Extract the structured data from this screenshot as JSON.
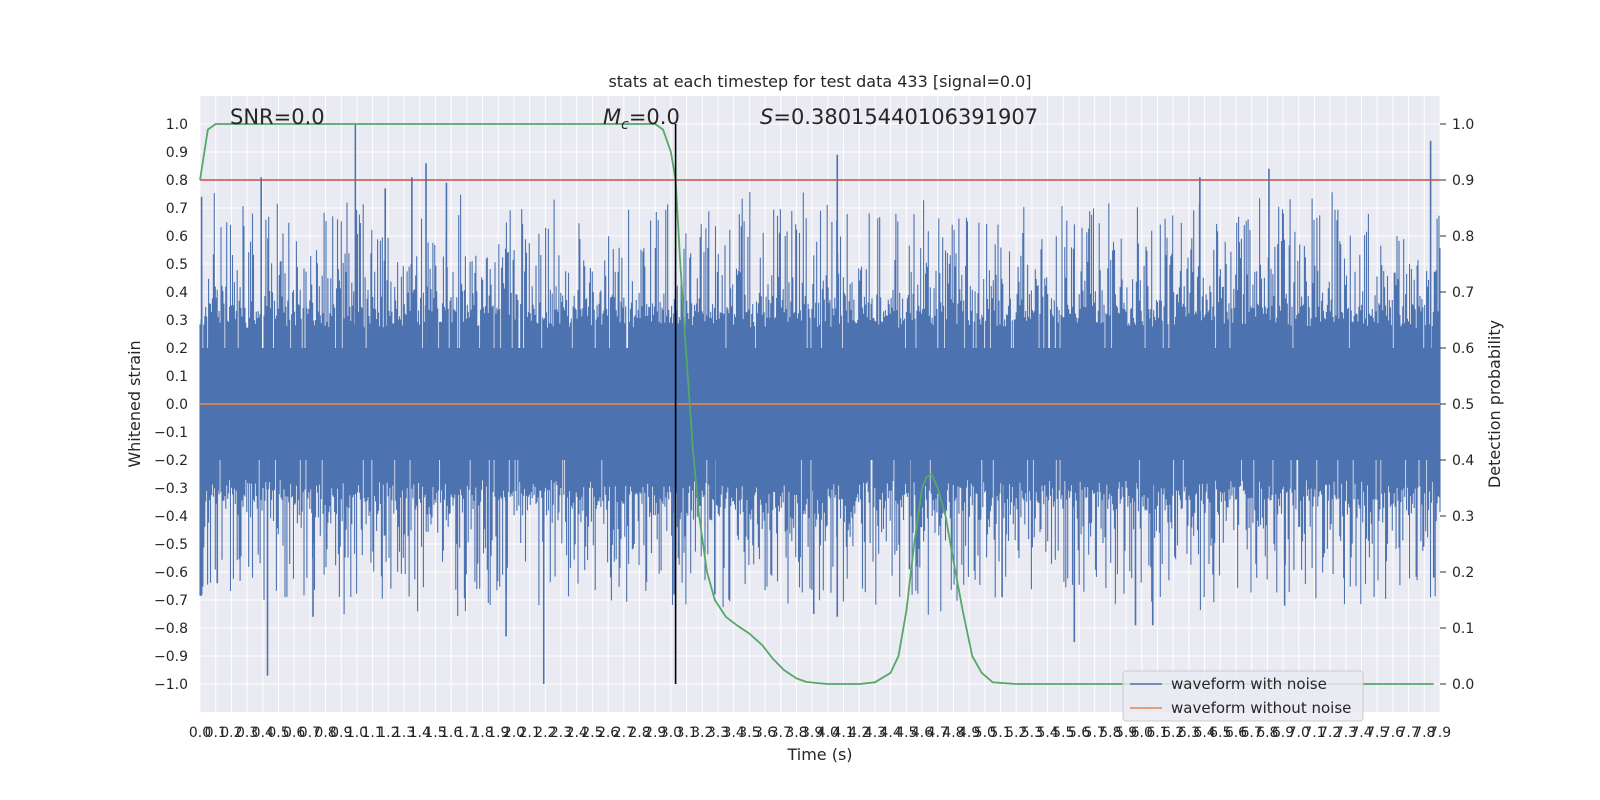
{
  "chart_data": {
    "type": "line",
    "title": "stats at each timestep for test data 433 [signal=0.0]",
    "xlabel": "Time (s)",
    "ylabel_left": "Whitened strain",
    "ylabel_right": "Detection probability",
    "xlim": [
      0.0,
      7.9
    ],
    "ylim_left": [
      -1.1,
      1.1
    ],
    "ylim_right": [
      -0.05,
      1.05
    ],
    "x_ticks": [
      "0.0",
      "0.1",
      "0.2",
      "0.3",
      "0.4",
      "0.5",
      "0.6",
      "0.7",
      "0.8",
      "0.9",
      "1.0",
      "1.1",
      "1.2",
      "1.3",
      "1.4",
      "1.5",
      "1.6",
      "1.7",
      "1.8",
      "1.9",
      "2.0",
      "2.1",
      "2.2",
      "2.3",
      "2.4",
      "2.5",
      "2.6",
      "2.7",
      "2.8",
      "2.9",
      "3.0",
      "3.1",
      "3.2",
      "3.3",
      "3.4",
      "3.5",
      "3.6",
      "3.7",
      "3.8",
      "3.9",
      "4.0",
      "4.1",
      "4.2",
      "4.3",
      "4.4",
      "4.5",
      "4.6",
      "4.7",
      "4.8",
      "4.9",
      "5.0",
      "5.1",
      "5.2",
      "5.3",
      "5.4",
      "5.5",
      "5.6",
      "5.7",
      "5.8",
      "5.9",
      "6.0",
      "6.1",
      "6.2",
      "6.3",
      "6.4",
      "6.5",
      "6.6",
      "6.7",
      "6.8",
      "6.9",
      "7.0",
      "7.1",
      "7.2",
      "7.3",
      "7.4",
      "7.5",
      "7.6",
      "7.7",
      "7.8",
      "7.9"
    ],
    "y_ticks_left": [
      "−1.0",
      "−0.9",
      "−0.8",
      "−0.7",
      "−0.6",
      "−0.5",
      "−0.4",
      "−0.3",
      "−0.2",
      "−0.1",
      "0.0",
      "0.1",
      "0.2",
      "0.3",
      "0.4",
      "0.5",
      "0.6",
      "0.7",
      "0.8",
      "0.9",
      "1.0"
    ],
    "y_ticks_right": [
      "0.0",
      "0.1",
      "0.2",
      "0.3",
      "0.4",
      "0.5",
      "0.6",
      "0.7",
      "0.8",
      "0.9",
      "1.0"
    ],
    "annotations": {
      "snr": "SNR=0.0",
      "mc_symbol": "M",
      "mc_sub": "c",
      "mc_value": "=0.0",
      "s_symbol": "S",
      "s_value": "=0.38015440106391907"
    },
    "threshold_right": 0.9,
    "marker_x": 3.03,
    "series": [
      {
        "name": "waveform with noise",
        "axis": "left",
        "color": "#4c72b0",
        "description": "dense noise, normalized to peak 1.0",
        "peaks": [
          {
            "x": 0.01,
            "y": 0.74
          },
          {
            "x": 0.01,
            "y": -0.64
          },
          {
            "x": 0.11,
            "y": -0.64
          },
          {
            "x": 0.39,
            "y": 0.81
          },
          {
            "x": 0.43,
            "y": -0.97
          },
          {
            "x": 0.72,
            "y": -0.76
          },
          {
            "x": 0.99,
            "y": 1.0
          },
          {
            "x": 1.18,
            "y": 0.77
          },
          {
            "x": 1.35,
            "y": 0.81
          },
          {
            "x": 1.44,
            "y": 0.86
          },
          {
            "x": 1.57,
            "y": 0.79
          },
          {
            "x": 1.95,
            "y": -0.83
          },
          {
            "x": 2.19,
            "y": -1.0
          },
          {
            "x": 3.02,
            "y": -0.68
          },
          {
            "x": 3.28,
            "y": -0.68
          },
          {
            "x": 3.91,
            "y": -0.75
          },
          {
            "x": 4.06,
            "y": 0.89
          },
          {
            "x": 4.06,
            "y": -0.76
          },
          {
            "x": 4.52,
            "y": -0.59
          },
          {
            "x": 5.11,
            "y": -0.69
          },
          {
            "x": 5.57,
            "y": -0.85
          },
          {
            "x": 5.96,
            "y": -0.79
          },
          {
            "x": 6.07,
            "y": -0.79
          },
          {
            "x": 6.37,
            "y": 0.81
          },
          {
            "x": 6.81,
            "y": 0.84
          },
          {
            "x": 6.91,
            "y": -0.72
          },
          {
            "x": 7.84,
            "y": 0.94
          },
          {
            "x": 7.86,
            "y": -0.62
          }
        ]
      },
      {
        "name": "waveform without noise",
        "axis": "left",
        "color": "#dd8452",
        "x": [
          0.0,
          7.9
        ],
        "y": [
          0.0,
          0.0
        ]
      },
      {
        "name": "",
        "axis": "right",
        "color": "#55a868",
        "x": [
          0.0,
          0.05,
          0.1,
          0.2,
          0.5,
          1.0,
          1.5,
          2.0,
          2.5,
          2.8,
          2.9,
          2.95,
          3.0,
          3.03,
          3.06,
          3.1,
          3.14,
          3.18,
          3.23,
          3.28,
          3.35,
          3.42,
          3.5,
          3.58,
          3.65,
          3.72,
          3.8,
          3.86,
          3.92,
          4.0,
          4.1,
          4.2,
          4.3,
          4.4,
          4.45,
          4.5,
          4.55,
          4.6,
          4.63,
          4.66,
          4.7,
          4.75,
          4.8,
          4.86,
          4.92,
          4.98,
          5.05,
          5.2,
          5.5,
          6.0,
          6.5,
          7.0,
          7.5,
          7.86
        ],
        "y": [
          0.9,
          0.99,
          1.0,
          1.0,
          1.0,
          1.0,
          1.0,
          1.0,
          1.0,
          1.0,
          1.0,
          0.99,
          0.95,
          0.9,
          0.75,
          0.58,
          0.42,
          0.3,
          0.2,
          0.15,
          0.12,
          0.105,
          0.09,
          0.07,
          0.045,
          0.025,
          0.01,
          0.004,
          0.002,
          0.0,
          0.0,
          0.0,
          0.003,
          0.02,
          0.05,
          0.13,
          0.25,
          0.35,
          0.37,
          0.375,
          0.35,
          0.3,
          0.22,
          0.13,
          0.05,
          0.02,
          0.003,
          0.0,
          0.0,
          0.0,
          0.0,
          0.0,
          0.0,
          0.0
        ]
      }
    ],
    "legend_entries": [
      "waveform with noise",
      "waveform without noise"
    ],
    "legend_position": "lower-right",
    "grid": true,
    "style": {
      "plot_bg": "#eaeaf2",
      "grid_color": "#ffffff",
      "threshold_color": "#c44e52",
      "marker_color": "#000000"
    }
  }
}
